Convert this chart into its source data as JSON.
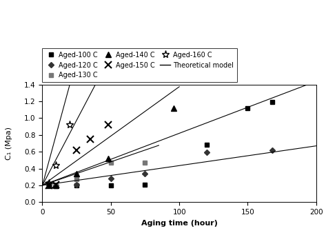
{
  "xlabel": "Aging time (hour)",
  "ylabel": "C₁ (Mpa)",
  "xlim": [
    0,
    200
  ],
  "ylim": [
    0,
    1.4
  ],
  "xticks": [
    0,
    50,
    100,
    150,
    200
  ],
  "yticks": [
    0,
    0.2,
    0.4,
    0.6,
    0.8,
    1.0,
    1.2,
    1.4
  ],
  "series": [
    {
      "label": "Aged-100 C",
      "marker": "s",
      "color": "#000000",
      "markersize": 5,
      "x": [
        5,
        10,
        25,
        50,
        75,
        120,
        150,
        168
      ],
      "y": [
        0.2,
        0.19,
        0.2,
        0.2,
        0.21,
        0.68,
        1.12,
        1.19
      ]
    },
    {
      "label": "Aged-120 C",
      "marker": "D",
      "color": "#333333",
      "markersize": 4,
      "x": [
        5,
        10,
        25,
        50,
        75,
        120,
        168
      ],
      "y": [
        0.2,
        0.2,
        0.21,
        0.28,
        0.34,
        0.59,
        0.62
      ]
    },
    {
      "label": "Aged-130 C",
      "marker": "s",
      "color": "#777777",
      "markersize": 5,
      "x": [
        5,
        10,
        25,
        50,
        75
      ],
      "y": [
        0.2,
        0.2,
        0.27,
        0.47,
        0.47
      ]
    },
    {
      "label": "Aged-140 C",
      "marker": "^",
      "color": "#000000",
      "markersize": 6,
      "x": [
        5,
        10,
        25,
        48,
        96
      ],
      "y": [
        0.2,
        0.2,
        0.34,
        0.52,
        1.12
      ]
    },
    {
      "label": "Aged-150 C",
      "marker": "x",
      "color": "#000000",
      "markersize": 7,
      "x": [
        5,
        10,
        25,
        35,
        48
      ],
      "y": [
        0.2,
        0.21,
        0.62,
        0.75,
        0.92
      ]
    },
    {
      "label": "Aged-160 C",
      "marker": "*",
      "color": "#000000",
      "markersize": 8,
      "x": [
        5,
        10,
        20
      ],
      "y": [
        0.22,
        0.44,
        0.92
      ]
    }
  ],
  "model_lines": [
    {
      "y0": 0.2,
      "slope": 0.0062,
      "xmax": 200
    },
    {
      "y0": 0.2,
      "slope": 0.00235,
      "xmax": 200
    },
    {
      "y0": 0.2,
      "slope": 0.0056,
      "xmax": 85
    },
    {
      "y0": 0.2,
      "slope": 0.01175,
      "xmax": 100
    },
    {
      "y0": 0.2,
      "slope": 0.031,
      "xmax": 50
    },
    {
      "y0": 0.2,
      "slope": 0.06,
      "xmax": 28
    }
  ]
}
